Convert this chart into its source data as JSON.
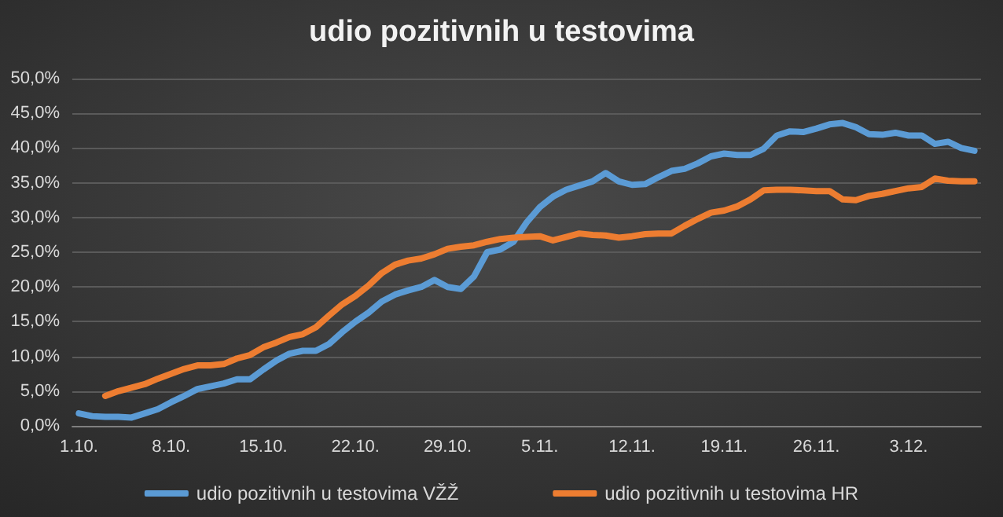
{
  "chart_data": {
    "type": "line",
    "title": "udio pozitivnih u testovima",
    "categories": [
      "1.10.",
      null,
      null,
      null,
      null,
      null,
      null,
      "8.10.",
      null,
      null,
      null,
      null,
      null,
      null,
      "15.10.",
      null,
      null,
      null,
      null,
      null,
      null,
      "22.10.",
      null,
      null,
      null,
      null,
      null,
      null,
      "29.10.",
      null,
      null,
      null,
      null,
      null,
      null,
      "5.11.",
      null,
      null,
      null,
      null,
      null,
      null,
      "12.11.",
      null,
      null,
      null,
      null,
      null,
      null,
      "19.11.",
      null,
      null,
      null,
      null,
      null,
      null,
      "26.11.",
      null,
      null,
      null,
      null,
      null,
      null,
      "3.12.",
      null,
      null,
      null,
      null,
      null
    ],
    "series": [
      {
        "name": "udio pozitivnih u testovima VŽŽ",
        "color": "#5b9bd5",
        "values": [
          1.8,
          1.4,
          1.3,
          1.3,
          1.2,
          1.8,
          2.4,
          3.4,
          4.3,
          5.3,
          5.7,
          6.1,
          6.7,
          6.7,
          8.1,
          9.4,
          10.4,
          10.8,
          10.8,
          11.8,
          13.5,
          15.0,
          16.3,
          17.9,
          18.9,
          19.5,
          20.0,
          21.0,
          20.0,
          19.7,
          21.5,
          25.0,
          25.4,
          26.5,
          29.3,
          31.5,
          33.0,
          34.0,
          34.6,
          35.2,
          36.4,
          35.2,
          34.7,
          34.8,
          35.8,
          36.7,
          37.0,
          37.8,
          38.8,
          39.2,
          39.0,
          39.0,
          39.9,
          41.8,
          42.4,
          42.3,
          42.8,
          43.4,
          43.6,
          43.0,
          42.0,
          41.9,
          42.2,
          41.8,
          41.8,
          40.6,
          40.9,
          40.0,
          39.6
        ]
      },
      {
        "name": "udio pozitivnih u testovima HR",
        "color": "#ed7d31",
        "values": [
          null,
          null,
          4.3,
          5.0,
          5.5,
          6.0,
          6.8,
          7.5,
          8.2,
          8.7,
          8.7,
          8.9,
          9.7,
          10.2,
          11.3,
          12.0,
          12.8,
          13.2,
          14.2,
          15.9,
          17.5,
          18.7,
          20.2,
          22.0,
          23.2,
          23.8,
          24.1,
          24.7,
          25.5,
          25.8,
          26.0,
          26.5,
          26.9,
          27.1,
          27.2,
          27.3,
          26.7,
          27.2,
          27.7,
          27.5,
          27.4,
          27.1,
          27.3,
          27.6,
          27.7,
          27.7,
          28.8,
          29.8,
          30.7,
          31.0,
          31.6,
          32.6,
          33.9,
          34.0,
          34.0,
          33.9,
          33.8,
          33.8,
          32.6,
          32.5,
          33.1,
          33.4,
          33.8,
          34.2,
          34.4,
          35.6,
          35.3,
          35.2,
          35.2
        ]
      }
    ],
    "ylim": [
      0,
      50
    ],
    "yticks": [
      {
        "value": 0,
        "label": "0,0%"
      },
      {
        "value": 5,
        "label": "5,0%"
      },
      {
        "value": 10,
        "label": "10,0%"
      },
      {
        "value": 15,
        "label": "15,0%"
      },
      {
        "value": 20,
        "label": "20,0%"
      },
      {
        "value": 25,
        "label": "25,0%"
      },
      {
        "value": 30,
        "label": "30,0%"
      },
      {
        "value": 35,
        "label": "35,0%"
      },
      {
        "value": 40,
        "label": "40,0%"
      },
      {
        "value": 45,
        "label": "45,0%"
      },
      {
        "value": 50,
        "label": "50,0%"
      }
    ],
    "grid": "y",
    "legend": "bottom",
    "marker": "none",
    "line_style": "solid"
  }
}
